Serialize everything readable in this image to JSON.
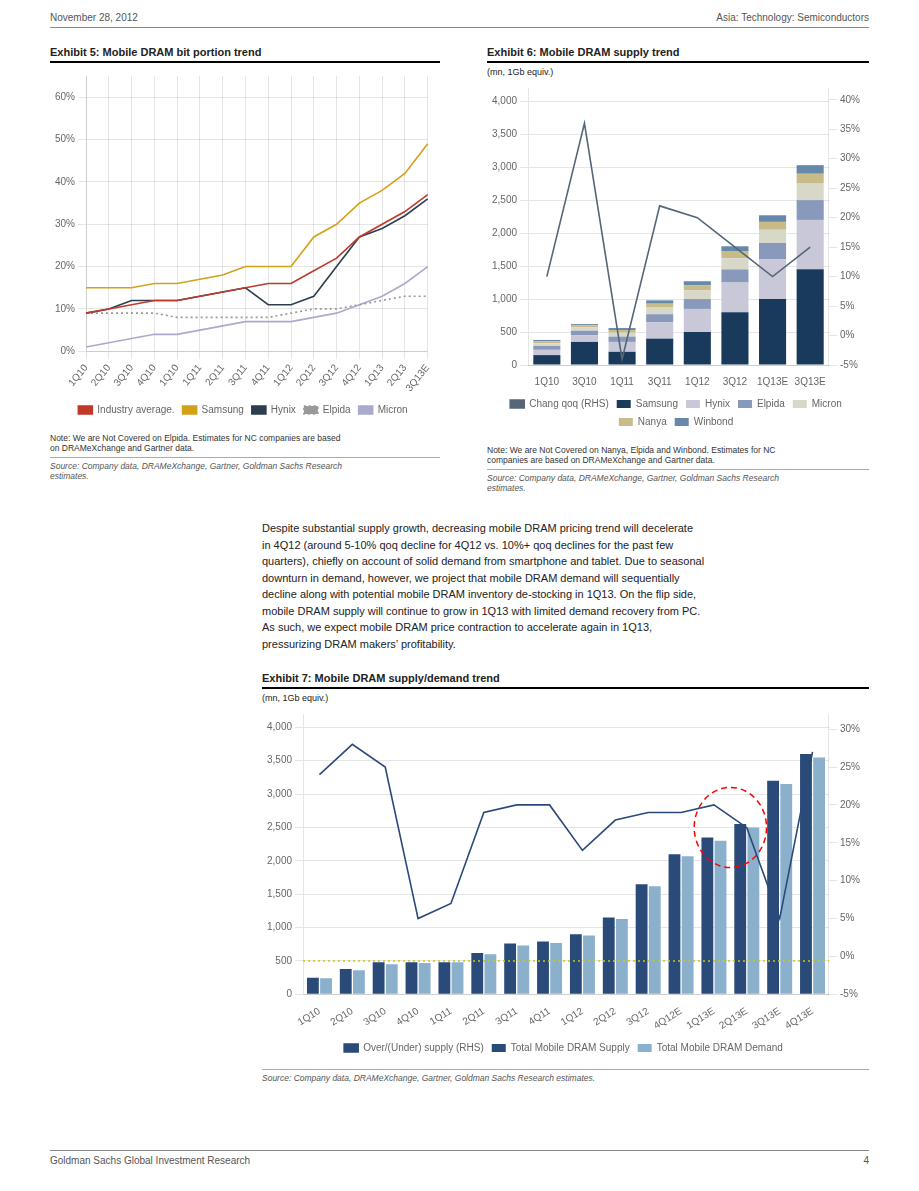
{
  "header": [
    "November 28, 2012",
    "Asia: Technology: Semiconductors"
  ],
  "footer": [
    "Goldman Sachs Global Investment Research",
    "4"
  ],
  "text": "Despite substantial supply growth, decreasing mobile DRAM pricing trend will decelerate\nin 4Q12 (around 5-10% qoq decline for 4Q12 vs. 10%+ qoq declines for the past few\nquarters), chiefly on account of solid demand from smartphone and tablet. Due to seasonal\ndownturn in demand, however, we project that mobile DRAM demand will sequentially\ndecline along with potential mobile DRAM inventory de-stocking in 1Q13. On the flip side,\nmobile DRAM supply will continue to grow in 1Q13 with limited demand recovery from PC.\nAs such, we expect mobile DRAM price contraction to accelerate again in 1Q13,\npressurizing DRAM makers’ profitability.",
  "chart_data": [
    {
      "type": "line",
      "title": "Exhibit 5: Mobile DRAM bit portion trend",
      "categories": [
        "1Q10",
        "2Q10",
        "3Q10",
        "4Q10",
        "1Q10",
        "1Q11",
        "2Q11",
        "3Q11",
        "4Q11",
        "1Q12",
        "2Q12",
        "3Q12",
        "4Q12",
        "1Q13",
        "2Q13",
        "3Q13E"
      ],
      "series": [
        {
          "name": "Industry average.",
          "color": "#c0392b",
          "values": [
            9,
            10,
            11,
            12,
            12,
            13,
            14,
            15,
            16,
            16,
            19,
            22,
            27,
            30,
            33,
            37
          ]
        },
        {
          "name": "Samsung",
          "color": "#d4a017",
          "values": [
            15,
            15,
            15,
            16,
            16,
            17,
            18,
            20,
            20,
            20,
            27,
            30,
            35,
            38,
            42,
            49
          ]
        },
        {
          "name": "Hynix",
          "color": "#2c3e50",
          "values": [
            9,
            10,
            12,
            12,
            12,
            13,
            14,
            15,
            11,
            11,
            13,
            20,
            27,
            29,
            32,
            36
          ]
        },
        {
          "name": "Elpida",
          "color": "#999999",
          "line_style": "dotted",
          "values": [
            9,
            9,
            9,
            9,
            8,
            8,
            8,
            8,
            8,
            9,
            10,
            10,
            11,
            12,
            13,
            13
          ]
        },
        {
          "name": "Micron",
          "color": "#aaaacc",
          "values": [
            1,
            2,
            3,
            4,
            4,
            5,
            6,
            7,
            7,
            7,
            8,
            9,
            11,
            13,
            16,
            20
          ]
        }
      ],
      "ylim": [
        0,
        65
      ],
      "yticks": [
        {
          "value": 0,
          "label": "0%"
        },
        {
          "value": 10,
          "label": "10%"
        },
        {
          "value": 20,
          "label": "20%"
        },
        {
          "value": 30,
          "label": "30%"
        },
        {
          "value": 40,
          "label": "40%"
        },
        {
          "value": 50,
          "label": "50%"
        },
        {
          "value": 60,
          "label": "60%"
        }
      ],
      "grid": true,
      "legend": "bottom",
      "note": "Note: We are Not Covered on Elpida. Estimates for NC companies are based\non DRAMeXchange and Gartner data.",
      "source": "Source: Company data, DRAMeXchange, Gartner, Goldman Sachs Research\nestimates."
    },
    {
      "type": "bar",
      "title": "Exhibit 6: Mobile DRAM supply trend",
      "subtitle": "(mn, 1Gb equiv.)",
      "categories": [
        "1Q10",
        "3Q10",
        "1Q11",
        "3Q11",
        "1Q12",
        "3Q12",
        "1Q13E",
        "3Q13E"
      ],
      "stacked": true,
      "series": [
        {
          "name": "Samsung",
          "color": "#1a3a5c",
          "values": [
            150,
            350,
            200,
            400,
            500,
            800,
            1000,
            1450
          ]
        },
        {
          "name": "Hynix",
          "color": "#c8c8d8",
          "values": [
            80,
            100,
            150,
            250,
            350,
            450,
            600,
            750
          ]
        },
        {
          "name": "Elpida",
          "color": "#8899bb",
          "values": [
            60,
            70,
            80,
            120,
            150,
            200,
            250,
            300
          ]
        },
        {
          "name": "Micron",
          "color": "#d8d8c8",
          "values": [
            40,
            50,
            60,
            100,
            130,
            170,
            200,
            250
          ]
        },
        {
          "name": "Nanya",
          "color": "#c8bb88",
          "values": [
            30,
            30,
            40,
            60,
            80,
            100,
            120,
            150
          ]
        },
        {
          "name": "Winbond",
          "color": "#6688aa",
          "values": [
            20,
            20,
            30,
            50,
            60,
            80,
            100,
            130
          ]
        },
        {
          "name": "Chang qoq (RHS)",
          "type": "line",
          "axis": "y2",
          "color": "#556677",
          "values": [
            10,
            36,
            -4,
            22,
            20,
            15,
            10,
            15
          ]
        }
      ],
      "ylim": [
        0,
        4200
      ],
      "yticks": [
        0,
        500,
        {
          "value": 1000,
          "label": "1,000"
        },
        {
          "value": 1500,
          "label": "1,500"
        },
        {
          "value": 2000,
          "label": "2,000"
        },
        {
          "value": 2500,
          "label": "2,500"
        },
        {
          "value": 3000,
          "label": "3,000"
        },
        {
          "value": 3500,
          "label": "3,500"
        },
        {
          "value": 4000,
          "label": "4,000"
        }
      ],
      "y2lim": [
        -5,
        42
      ],
      "y2ticks": [
        {
          "value": -5,
          "label": "-5%"
        },
        {
          "value": 0,
          "label": "0%"
        },
        {
          "value": 5,
          "label": "5%"
        },
        {
          "value": 10,
          "label": "10%"
        },
        {
          "value": 15,
          "label": "15%"
        },
        {
          "value": 20,
          "label": "20%"
        },
        {
          "value": 25,
          "label": "25%"
        },
        {
          "value": 30,
          "label": "30%"
        },
        {
          "value": 35,
          "label": "35%"
        },
        {
          "value": 40,
          "label": "40%"
        }
      ],
      "grid": "y",
      "legend": "bottom",
      "note": "Note: We are Not Covered on Nanya, Elpida and Winbond. Estimates for NC\ncompanies are based on DRAMeXchange and Gartner data.",
      "source": "Source: Company data, DRAMeXchange, Gartner, Goldman Sachs Research\nestimates."
    },
    {
      "type": "bar",
      "title": "Exhibit 7: Mobile DRAM supply/demand trend",
      "subtitle": "(mn, 1Gb equiv.)",
      "categories": [
        "1Q10",
        "2Q10",
        "3Q10",
        "4Q10",
        "1Q11",
        "2Q11",
        "3Q11",
        "4Q11",
        "1Q12",
        "2Q12",
        "3Q12",
        "4Q12E",
        "1Q13E",
        "2Q13E",
        "3Q13E",
        "4Q13E"
      ],
      "series": [
        {
          "name": "Total Mobile DRAM Supply",
          "color": "#2a4a7a",
          "values": [
            250,
            380,
            480,
            480,
            480,
            620,
            760,
            790,
            900,
            1150,
            1650,
            2100,
            2350,
            2550,
            3200,
            3600
          ]
        },
        {
          "name": "Total Mobile DRAM Demand",
          "color": "#8ab0cc",
          "values": [
            240,
            360,
            450,
            470,
            480,
            600,
            730,
            770,
            880,
            1130,
            1620,
            2070,
            2300,
            2500,
            3150,
            3550
          ]
        },
        {
          "name": "Over/(Under) supply (RHS)",
          "type": "line",
          "axis": "y2",
          "color": "#2a4a7a",
          "values": [
            24,
            28,
            25,
            5,
            7,
            19,
            20,
            20,
            14,
            18,
            19,
            19,
            20,
            17,
            5,
            27
          ]
        }
      ],
      "ylim": [
        0,
        4200
      ],
      "yticks": [
        0,
        500,
        {
          "value": 1000,
          "label": "1,000"
        },
        {
          "value": 1500,
          "label": "1,500"
        },
        {
          "value": 2000,
          "label": "2,000"
        },
        {
          "value": 2500,
          "label": "2,500"
        },
        {
          "value": 3000,
          "label": "3,000"
        },
        {
          "value": 3500,
          "label": "3,500"
        },
        {
          "value": 4000,
          "label": "4,000"
        }
      ],
      "y2lim": [
        -5,
        32
      ],
      "y2ticks": [
        {
          "value": -5,
          "label": "-5%"
        },
        {
          "value": 0,
          "label": "0%"
        },
        {
          "value": 5,
          "label": "5%"
        },
        {
          "value": 10,
          "label": "10%"
        },
        {
          "value": 15,
          "label": "15%"
        },
        {
          "value": 20,
          "label": "20%"
        },
        {
          "value": 25,
          "label": "25%"
        },
        {
          "value": 30,
          "label": "30%"
        }
      ],
      "hlines": [
        {
          "value": 500,
          "color": "#cccc00",
          "line_style": "dotted"
        }
      ],
      "ellipse": {
        "categories": [
          "1Q13E",
          "2Q13E"
        ],
        "y": 2500,
        "height": 1200,
        "color": "red",
        "line_style": "dashed"
      },
      "grid": "y",
      "legend": "bottom",
      "source": "Source: Company data, DRAMeXchange, Gartner, Goldman Sachs Research estimates."
    }
  ]
}
